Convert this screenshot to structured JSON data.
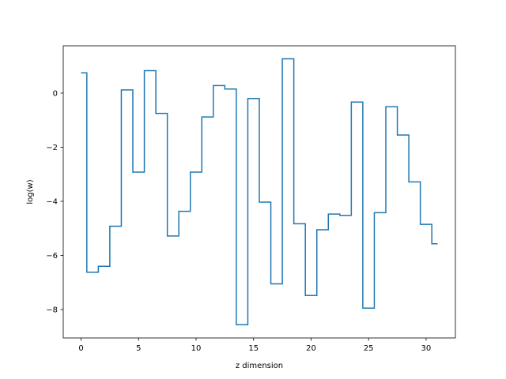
{
  "chart_data": {
    "type": "line",
    "drawstyle": "steps-mid",
    "title": "",
    "xlabel": "z dimension",
    "ylabel": "log(w)",
    "xlim": [
      -1.55,
      32.55
    ],
    "ylim": [
      -9.05,
      1.75
    ],
    "xticks": [
      0,
      5,
      10,
      15,
      20,
      25,
      30
    ],
    "xtick_labels": [
      "0",
      "5",
      "10",
      "15",
      "20",
      "25",
      "30"
    ],
    "yticks": [
      -8,
      -6,
      -4,
      -2,
      0
    ],
    "ytick_labels": [
      "−8",
      "−6",
      "−4",
      "−2",
      "0"
    ],
    "grid": false,
    "series": [
      {
        "color": "#1f77b4",
        "x": [
          0,
          1,
          2,
          3,
          4,
          5,
          6,
          7,
          8,
          9,
          10,
          11,
          12,
          13,
          14,
          15,
          16,
          17,
          18,
          19,
          20,
          21,
          22,
          23,
          24,
          25,
          26,
          27,
          28,
          29,
          30,
          31
        ],
        "y": [
          0.75,
          -6.62,
          -6.4,
          -4.92,
          0.12,
          -2.92,
          0.83,
          -0.75,
          -5.28,
          -4.37,
          -2.92,
          -0.88,
          0.28,
          0.15,
          -8.56,
          -0.2,
          -4.03,
          -7.05,
          1.27,
          -4.83,
          -7.48,
          -5.05,
          -4.47,
          -4.52,
          -0.33,
          -7.95,
          -4.42,
          -0.5,
          -1.55,
          -3.28,
          -4.85,
          -5.57
        ]
      }
    ]
  }
}
